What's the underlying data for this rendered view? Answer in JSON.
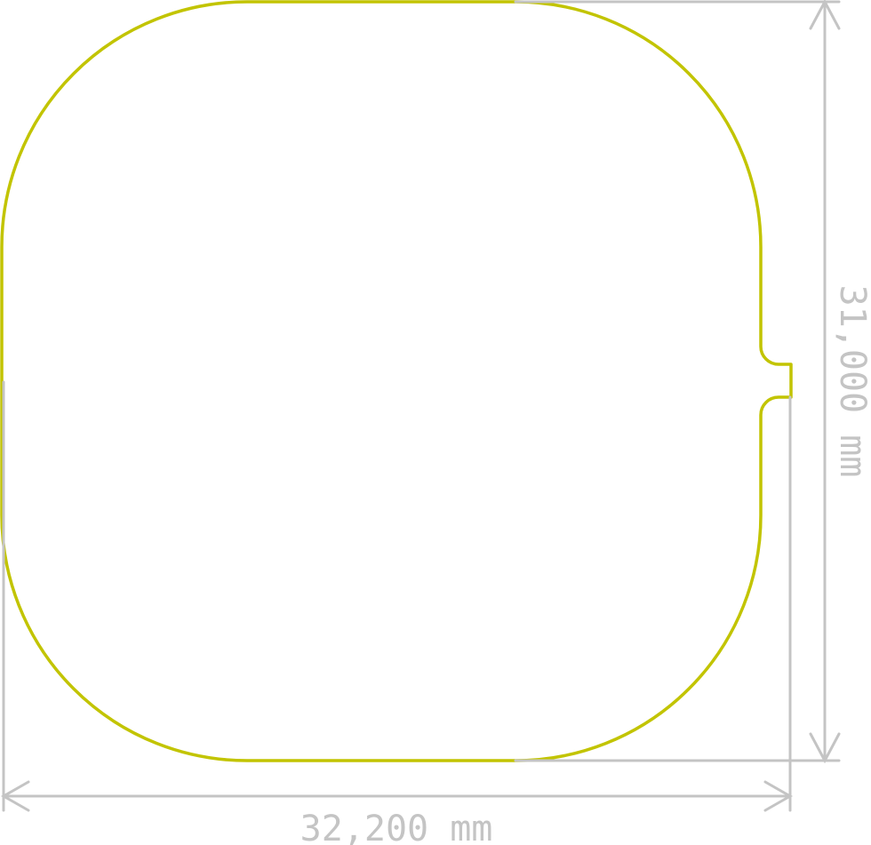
{
  "drawing": {
    "outline_color": "#c2c400",
    "dimension_color": "#c4c4c4",
    "width_label": "32,200 mm",
    "height_label": "31,000 mm"
  }
}
